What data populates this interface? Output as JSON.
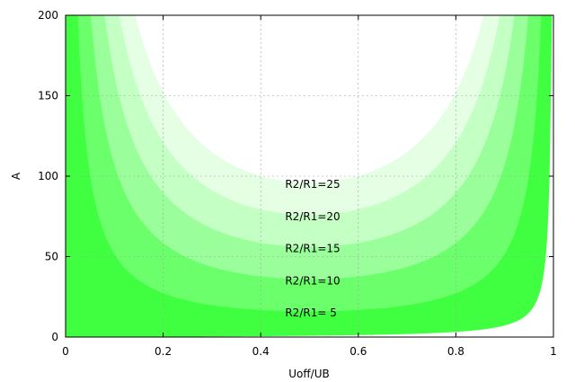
{
  "chart_data": {
    "type": "area",
    "title": "",
    "xlabel": "Uoff/UB",
    "ylabel": "A",
    "xlim": [
      0,
      1
    ],
    "ylim": [
      0,
      200
    ],
    "xticks": [
      0,
      0.2,
      0.4,
      0.6,
      0.8,
      1
    ],
    "xtick_labels": [
      "0",
      "0.2",
      "0.4",
      "0.6",
      "0.8",
      "1"
    ],
    "yticks": [
      0,
      50,
      100,
      150,
      200
    ],
    "ytick_labels": [
      "0",
      "50",
      "100",
      "150",
      "200"
    ],
    "grid": true,
    "legend": "none",
    "series": [
      {
        "label": "R2/R1= 5",
        "r_ratio": 5,
        "color": "#40ff40",
        "label_x": 0.45,
        "label_y": 15
      },
      {
        "label": "R2/R1=10",
        "r_ratio": 10,
        "color": "#6cff6c",
        "label_x": 0.45,
        "label_y": 35
      },
      {
        "label": "R2/R1=15",
        "r_ratio": 15,
        "color": "#9aff9a",
        "label_x": 0.45,
        "label_y": 55
      },
      {
        "label": "R2/R1=20",
        "r_ratio": 20,
        "color": "#c4ffc4",
        "label_x": 0.45,
        "label_y": 75
      },
      {
        "label": "R2/R1=25",
        "r_ratio": 25,
        "color": "#e4ffe4",
        "label_x": 0.45,
        "label_y": 95
      }
    ]
  }
}
